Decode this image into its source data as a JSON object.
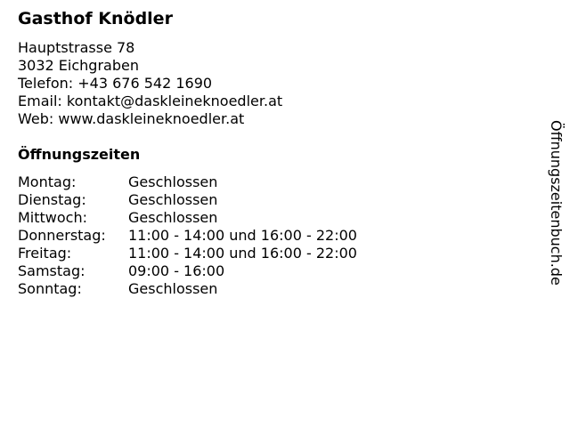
{
  "title": "Gasthof Knödler",
  "address": [
    "Hauptstrasse 78",
    "3032 Eichgraben",
    "Telefon: +43 676 542 1690",
    "Email: kontakt@daskleineknoedler.at",
    "Web: www.daskleineknoedler.at"
  ],
  "hours_heading": "Öffnungszeiten",
  "hours": [
    {
      "day": "Montag:",
      "time": "Geschlossen"
    },
    {
      "day": "Dienstag:",
      "time": "Geschlossen"
    },
    {
      "day": "Mittwoch:",
      "time": "Geschlossen"
    },
    {
      "day": "Donnerstag:",
      "time": "11:00 - 14:00 und 16:00 - 22:00"
    },
    {
      "day": "Freitag:",
      "time": "11:00 - 14:00 und 16:00 - 22:00"
    },
    {
      "day": "Samstag:",
      "time": "09:00 - 16:00"
    },
    {
      "day": "Sonntag:",
      "time": "Geschlossen"
    }
  ],
  "watermark": "Öffnungszeitenbuch.de"
}
